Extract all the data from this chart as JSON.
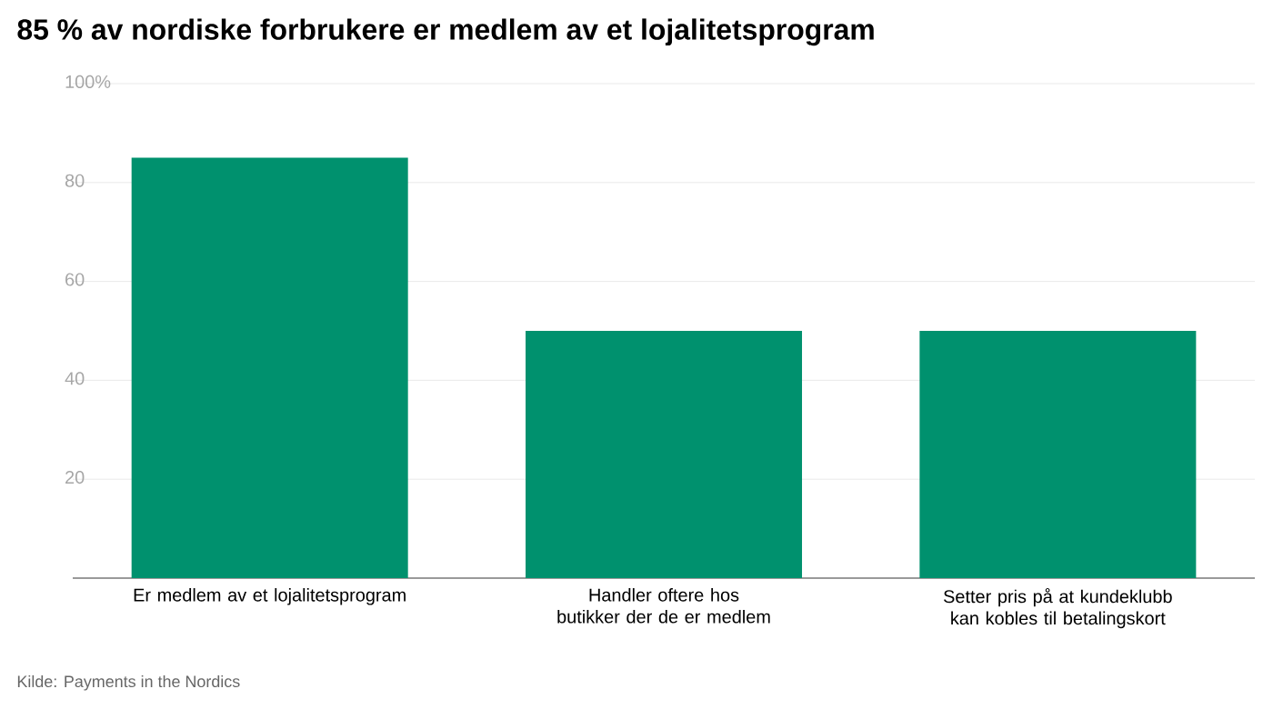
{
  "chart_data": {
    "type": "bar",
    "title": "85 % av nordiske forbrukere er medlem av et lojalitetsprogram",
    "categories": [
      "Er medlem av et lojalitetsprogram",
      "Handler oftere hos butikker der de er medlem",
      "Setter pris på at kundeklubb kan kobles til betalingskort"
    ],
    "values": [
      85,
      50,
      50
    ],
    "color": "#00916e",
    "ylim": [
      0,
      100
    ],
    "yticks": [
      20,
      40,
      60,
      80,
      {
        "value": 100,
        "label": "100%"
      }
    ],
    "grid": "y",
    "annotations": [
      "Kilde: Payments in the Nordics"
    ]
  }
}
